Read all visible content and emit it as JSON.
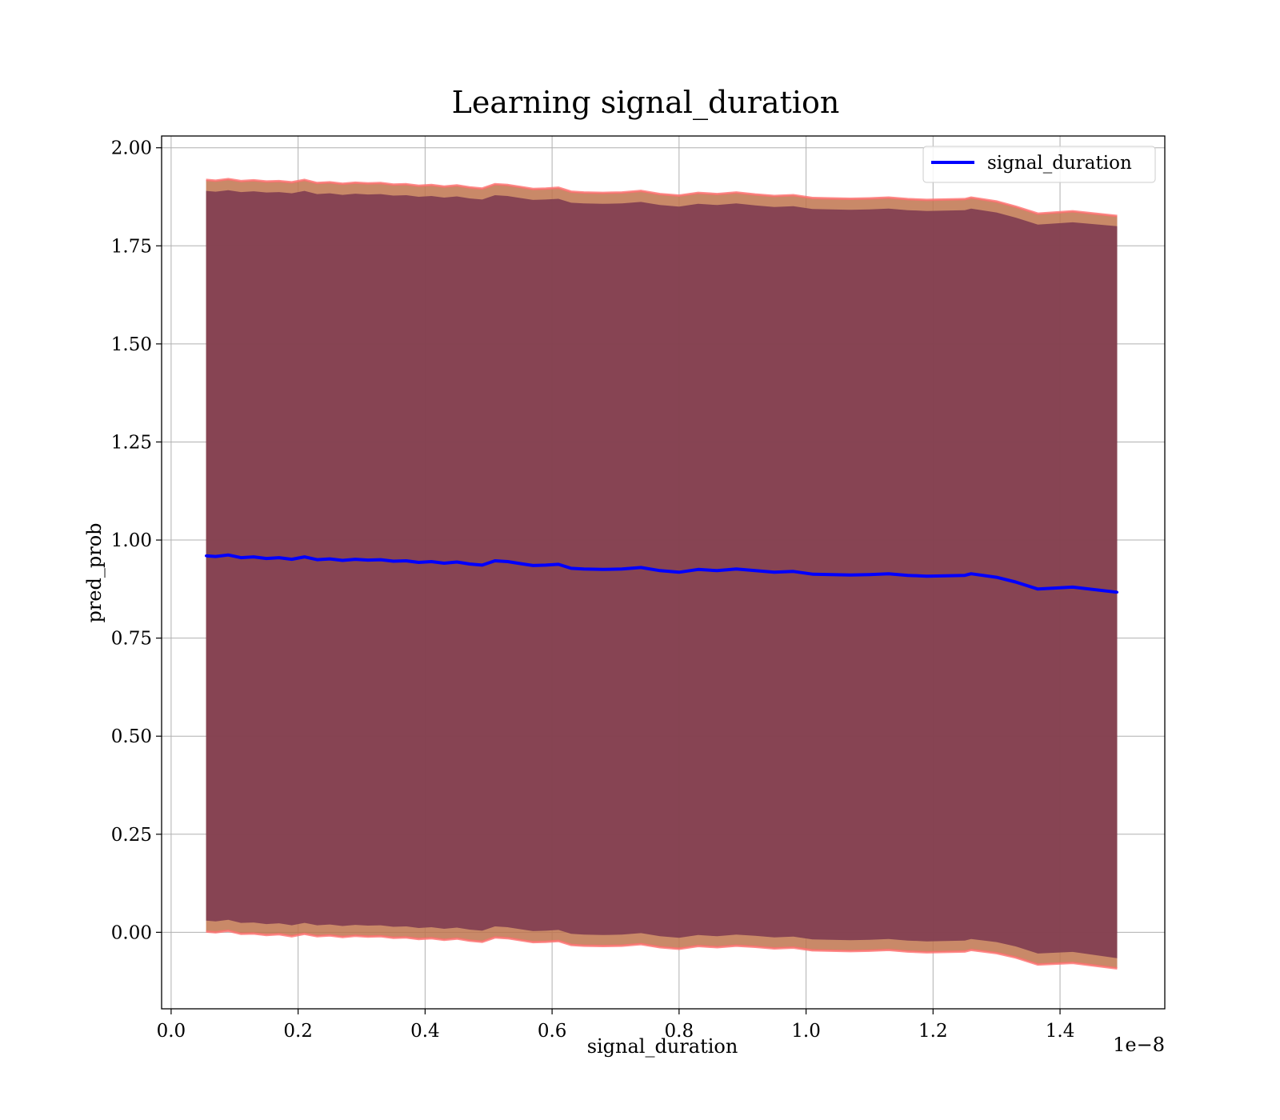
{
  "chart_data": {
    "type": "line",
    "title": "Learning signal_duration",
    "xlabel": "signal_duration",
    "ylabel": "pred_prob",
    "x_offset_label": "1e−8",
    "xlim": [
      -1.5e-10,
      1.565e-08
    ],
    "ylim": [
      -0.195,
      2.03
    ],
    "x_ticks": [
      0,
      2e-09,
      4e-09,
      6e-09,
      8e-09,
      1e-08,
      1.2e-08,
      1.4e-08
    ],
    "x_tick_labels": [
      "0.0",
      "0.2",
      "0.4",
      "0.6",
      "0.8",
      "1.0",
      "1.2",
      "1.4"
    ],
    "y_ticks": [
      0,
      0.25,
      0.5,
      0.75,
      1.0,
      1.25,
      1.5,
      1.75,
      2.0
    ],
    "y_tick_labels": [
      "0.00",
      "0.25",
      "0.50",
      "0.75",
      "1.00",
      "1.25",
      "1.50",
      "1.75",
      "2.00"
    ],
    "grid": true,
    "legend_position": "top-right",
    "colors": {
      "line": "#0000ff",
      "inner_band": "#7b3850",
      "outer_band": "#c0744e",
      "band_edge": "#ff6f6f"
    },
    "series": [
      {
        "name": "signal_duration",
        "x": [
          5.5e-10,
          7e-10,
          9e-10,
          1.1e-09,
          1.3e-09,
          1.5e-09,
          1.7e-09,
          1.9e-09,
          2.1e-09,
          2.3e-09,
          2.5e-09,
          2.7e-09,
          2.9e-09,
          3.1e-09,
          3.3e-09,
          3.5e-09,
          3.7e-09,
          3.9e-09,
          4.1e-09,
          4.3e-09,
          4.5e-09,
          4.7e-09,
          4.9e-09,
          5.1e-09,
          5.3e-09,
          5.5e-09,
          5.7e-09,
          5.9e-09,
          6.1e-09,
          6.3e-09,
          6.5e-09,
          6.8e-09,
          7.1e-09,
          7.4e-09,
          7.7e-09,
          8e-09,
          8.3e-09,
          8.6e-09,
          8.9e-09,
          9.2e-09,
          9.5e-09,
          9.8e-09,
          1.01e-08,
          1.04e-08,
          1.07e-08,
          1.1e-08,
          1.13e-08,
          1.16e-08,
          1.19e-08,
          1.22e-08,
          1.25e-08,
          1.26e-08,
          1.3e-08,
          1.33e-08,
          1.365e-08,
          1.42e-08,
          1.49e-08
        ],
        "y": [
          0.96,
          0.958,
          0.962,
          0.955,
          0.957,
          0.953,
          0.955,
          0.951,
          0.957,
          0.95,
          0.952,
          0.948,
          0.951,
          0.949,
          0.95,
          0.946,
          0.947,
          0.943,
          0.945,
          0.941,
          0.944,
          0.939,
          0.936,
          0.947,
          0.945,
          0.94,
          0.935,
          0.936,
          0.938,
          0.928,
          0.926,
          0.925,
          0.926,
          0.93,
          0.922,
          0.918,
          0.925,
          0.922,
          0.926,
          0.922,
          0.918,
          0.92,
          0.913,
          0.912,
          0.911,
          0.912,
          0.914,
          0.91,
          0.908,
          0.909,
          0.91,
          0.914,
          0.905,
          0.893,
          0.875,
          0.88,
          0.867
        ],
        "band_inner_upper": [
          1.89,
          1.888,
          1.892,
          1.887,
          1.889,
          1.886,
          1.887,
          1.884,
          1.89,
          1.882,
          1.884,
          1.88,
          1.883,
          1.881,
          1.882,
          1.878,
          1.879,
          1.875,
          1.877,
          1.873,
          1.876,
          1.871,
          1.868,
          1.879,
          1.877,
          1.872,
          1.867,
          1.868,
          1.87,
          1.86,
          1.858,
          1.857,
          1.858,
          1.862,
          1.854,
          1.85,
          1.857,
          1.854,
          1.858,
          1.853,
          1.849,
          1.851,
          1.844,
          1.843,
          1.842,
          1.843,
          1.845,
          1.841,
          1.839,
          1.84,
          1.841,
          1.845,
          1.835,
          1.822,
          1.804,
          1.81,
          1.8
        ],
        "band_inner_lower": [
          0.03,
          0.028,
          0.032,
          0.024,
          0.025,
          0.021,
          0.023,
          0.018,
          0.024,
          0.018,
          0.02,
          0.016,
          0.019,
          0.017,
          0.018,
          0.014,
          0.015,
          0.011,
          0.013,
          0.009,
          0.012,
          0.007,
          0.004,
          0.015,
          0.013,
          0.008,
          0.003,
          0.004,
          0.006,
          -0.004,
          -0.006,
          -0.007,
          -0.006,
          -0.002,
          -0.01,
          -0.014,
          -0.007,
          -0.01,
          -0.006,
          -0.009,
          -0.013,
          -0.011,
          -0.018,
          -0.019,
          -0.02,
          -0.019,
          -0.017,
          -0.021,
          -0.023,
          -0.022,
          -0.021,
          -0.017,
          -0.025,
          -0.036,
          -0.054,
          -0.05,
          -0.066
        ],
        "band_outer_upper": [
          1.918,
          1.916,
          1.92,
          1.915,
          1.917,
          1.914,
          1.915,
          1.912,
          1.918,
          1.91,
          1.912,
          1.908,
          1.911,
          1.909,
          1.91,
          1.906,
          1.907,
          1.903,
          1.905,
          1.901,
          1.904,
          1.899,
          1.896,
          1.907,
          1.905,
          1.9,
          1.895,
          1.896,
          1.898,
          1.888,
          1.886,
          1.885,
          1.886,
          1.89,
          1.882,
          1.878,
          1.885,
          1.882,
          1.886,
          1.881,
          1.877,
          1.879,
          1.872,
          1.871,
          1.87,
          1.871,
          1.873,
          1.869,
          1.867,
          1.868,
          1.869,
          1.873,
          1.863,
          1.85,
          1.832,
          1.838,
          1.826
        ],
        "band_outer_lower": [
          0.002,
          0.0,
          0.004,
          -0.004,
          -0.003,
          -0.007,
          -0.005,
          -0.01,
          -0.004,
          -0.01,
          -0.008,
          -0.012,
          -0.009,
          -0.011,
          -0.01,
          -0.014,
          -0.013,
          -0.017,
          -0.015,
          -0.019,
          -0.016,
          -0.021,
          -0.024,
          -0.013,
          -0.015,
          -0.02,
          -0.025,
          -0.024,
          -0.022,
          -0.032,
          -0.034,
          -0.035,
          -0.034,
          -0.03,
          -0.038,
          -0.042,
          -0.035,
          -0.038,
          -0.034,
          -0.037,
          -0.041,
          -0.039,
          -0.046,
          -0.047,
          -0.048,
          -0.047,
          -0.045,
          -0.049,
          -0.051,
          -0.05,
          -0.049,
          -0.045,
          -0.053,
          -0.064,
          -0.082,
          -0.078,
          -0.092
        ]
      }
    ]
  }
}
